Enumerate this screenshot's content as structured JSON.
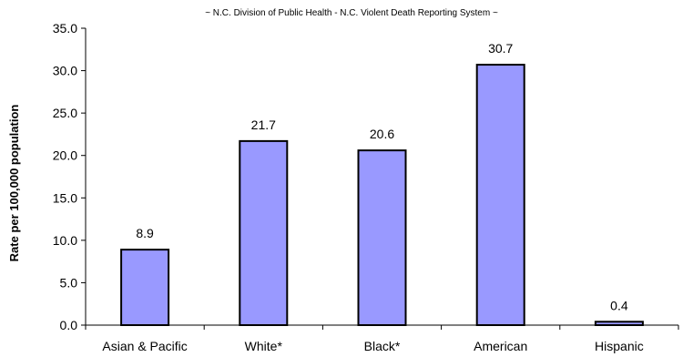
{
  "chart_data": {
    "type": "bar",
    "subtitle": "~ N.C. Division of Public Health - N.C. Violent Death Reporting System ~",
    "ylabel": "Rate per 100,000 population",
    "categories": [
      "Asian & Pacific",
      "White*",
      "Black*",
      "American",
      "Hispanic"
    ],
    "values": [
      8.9,
      21.7,
      20.6,
      30.7,
      0.4
    ],
    "data_labels": [
      "8.9",
      "21.7",
      "20.6",
      "30.7",
      "0.4"
    ],
    "ylim": [
      0,
      35
    ],
    "yticks": [
      "0.0",
      "5.0",
      "10.0",
      "15.0",
      "20.0",
      "25.0",
      "30.0",
      "35.0"
    ],
    "grid": false,
    "legend": "none",
    "colors": {
      "bar_fill": "#9999ff",
      "bar_stroke": "#000000",
      "axis": "#000000"
    }
  }
}
